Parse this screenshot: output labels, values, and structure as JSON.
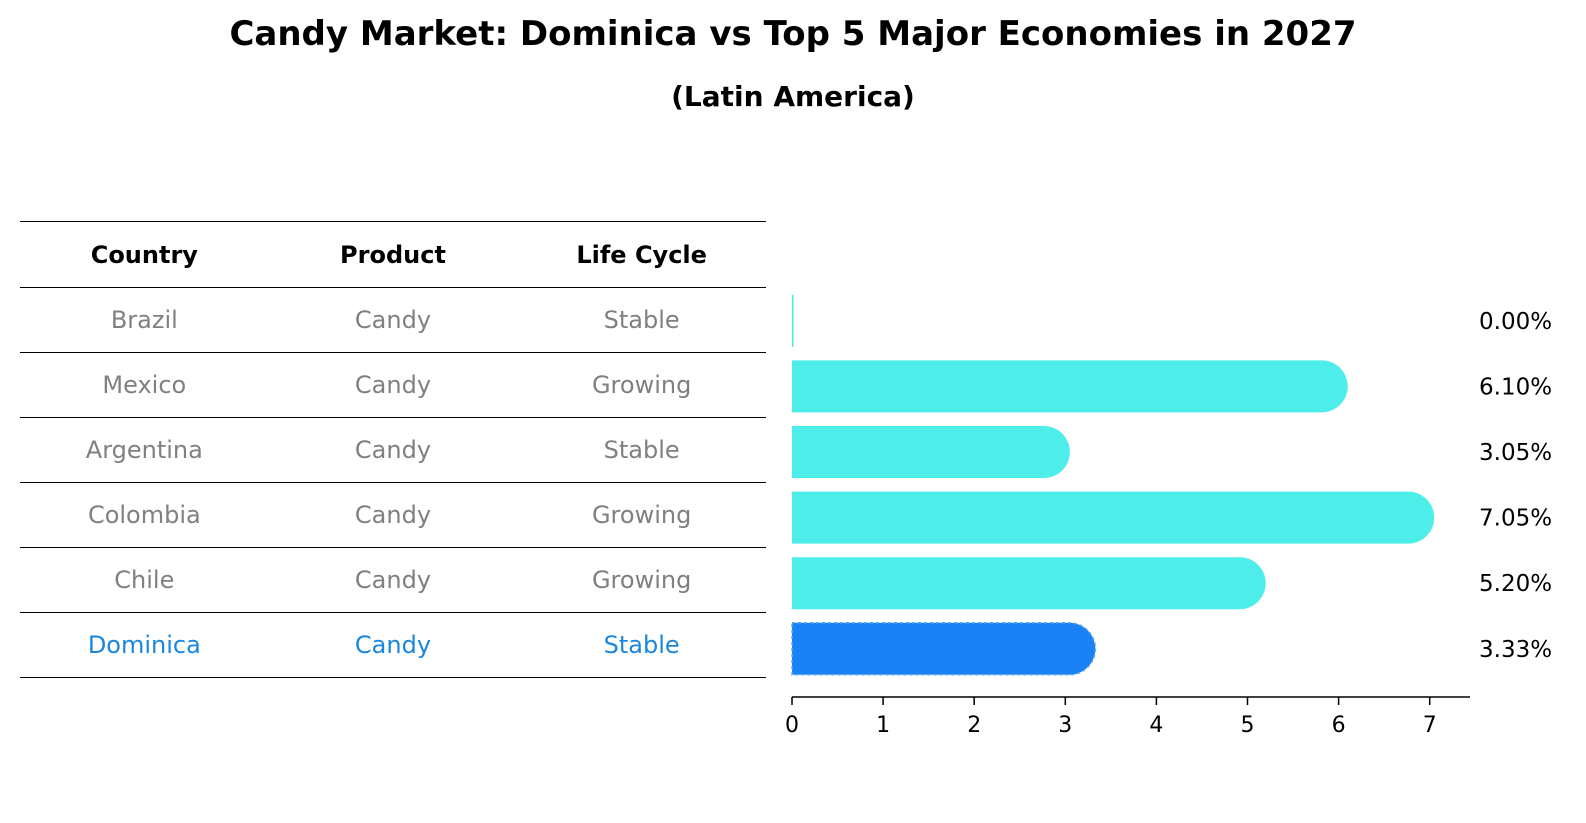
{
  "title": "Candy Market: Dominica vs Top 5 Major Economies in 2027",
  "subtitle": "(Latin America)",
  "table": {
    "headers": [
      "Country",
      "Product",
      "Life Cycle"
    ],
    "rows": [
      [
        "Brazil",
        "Candy",
        "Stable"
      ],
      [
        "Mexico",
        "Candy",
        "Growing"
      ],
      [
        "Argentina",
        "Candy",
        "Stable"
      ],
      [
        "Colombia",
        "Candy",
        "Growing"
      ],
      [
        "Chile",
        "Candy",
        "Growing"
      ],
      [
        "Dominica",
        "Candy",
        "Stable"
      ]
    ],
    "highlight_row": 5
  },
  "colors": {
    "bar": "#4deeea",
    "highlight_bar": "#1a82f5",
    "highlight_text": "#1a87dd",
    "muted_text": "#808080"
  },
  "chart_data": {
    "type": "bar",
    "orientation": "horizontal",
    "categories": [
      "Brazil",
      "Mexico",
      "Argentina",
      "Colombia",
      "Chile",
      "Dominica"
    ],
    "values": [
      0.0,
      6.1,
      3.05,
      7.05,
      5.2,
      3.33
    ],
    "value_labels": [
      "0.00%",
      "6.10%",
      "3.05%",
      "7.05%",
      "5.20%",
      "3.33%"
    ],
    "highlight_index": 5,
    "xticks": [
      0,
      1,
      2,
      3,
      4,
      5,
      6,
      7
    ],
    "xlim": [
      0,
      7.4
    ],
    "title": "Candy Market: Dominica vs Top 5 Major Economies in 2027",
    "xlabel": "",
    "ylabel": ""
  }
}
